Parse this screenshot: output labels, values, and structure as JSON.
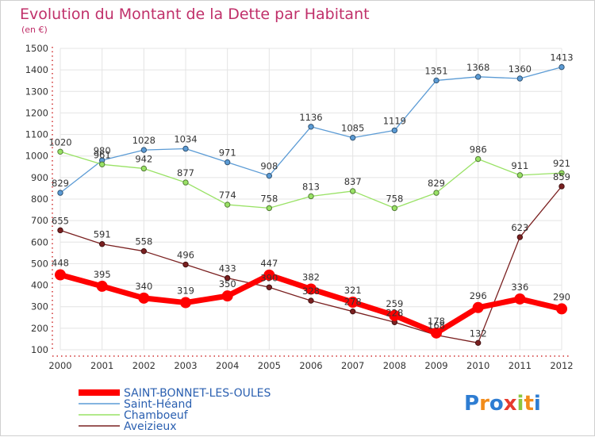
{
  "title": "Evolution du Montant de la Dette par Habitant",
  "subtitle": "(en €)",
  "logo": {
    "text": "Proxiti"
  },
  "colors": {
    "title": "#c0306a",
    "grid": "#e4e4e4",
    "axis_red": "#d03030"
  },
  "chart_data": {
    "type": "line",
    "x": [
      "2000",
      "2001",
      "2002",
      "2003",
      "2004",
      "2005",
      "2006",
      "2007",
      "2008",
      "2009",
      "2010",
      "2011",
      "2012"
    ],
    "ylim": [
      100,
      1500
    ],
    "yticks": [
      100,
      200,
      300,
      400,
      500,
      600,
      700,
      800,
      900,
      1000,
      1100,
      1200,
      1300,
      1400,
      1500
    ],
    "grid": true,
    "legend_position": "bottom-left",
    "series": [
      {
        "name": "SAINT-BONNET-LES-OULES",
        "color": "#ff0000",
        "width": "thick",
        "values": [
          448,
          395,
          340,
          319,
          350,
          447,
          382,
          321,
          259,
          178,
          296,
          336,
          290
        ]
      },
      {
        "name": "Saint-Héand",
        "color": "#5b9bd5",
        "width": "thin",
        "values": [
          829,
          980,
          1028,
          1034,
          971,
          908,
          1136,
          1085,
          1119,
          1351,
          1368,
          1360,
          1413
        ]
      },
      {
        "name": "Chamboeuf",
        "color": "#99e265",
        "width": "thin",
        "values": [
          1020,
          961,
          942,
          877,
          774,
          758,
          813,
          837,
          758,
          829,
          986,
          911,
          921
        ]
      },
      {
        "name": "Aveizieux",
        "color": "#7a2020",
        "width": "thin",
        "values": [
          655,
          591,
          558,
          496,
          433,
          390,
          328,
          278,
          228,
          168,
          132,
          623,
          859
        ]
      }
    ]
  }
}
